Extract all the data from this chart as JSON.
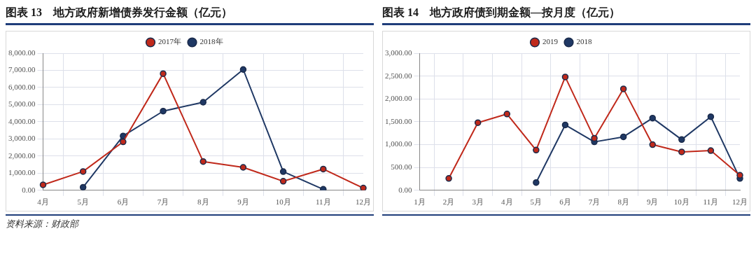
{
  "chart_data": [
    {
      "type": "line",
      "title": "图表 13　地方政府新增债券发行金额（亿元）",
      "categories": [
        "4月",
        "5月",
        "6月",
        "7月",
        "8月",
        "9月",
        "10月",
        "11月",
        "12月"
      ],
      "series": [
        {
          "name": "2018年",
          "color": "#1f3864",
          "values": [
            null,
            180,
            3170,
            4620,
            5140,
            7050,
            1090,
            60,
            null
          ]
        },
        {
          "name": "2017年",
          "color": "#c0291b",
          "values": [
            320,
            1100,
            2830,
            6810,
            1680,
            1340,
            530,
            1240,
            130
          ]
        }
      ],
      "ylim": [
        0,
        8000
      ],
      "yticks": [
        {
          "value": 0,
          "label": "0.00"
        },
        {
          "value": 1000,
          "label": "1,000.00"
        },
        {
          "value": 2000,
          "label": "2,000.00"
        },
        {
          "value": 3000,
          "label": "3,000.00"
        },
        {
          "value": 4000,
          "label": "4,000.00"
        },
        {
          "value": 5000,
          "label": "5,000.00"
        },
        {
          "value": 6000,
          "label": "6,000.00"
        },
        {
          "value": 7000,
          "label": "7,000.00"
        },
        {
          "value": 8000,
          "label": "8,000.00"
        }
      ],
      "grid": true,
      "legend": "top",
      "marker": "circle",
      "line_style": "solid",
      "annotations": [
        "资料来源：财政部"
      ]
    },
    {
      "type": "line",
      "title": "图表 14　地方政府债到期金额—按月度（亿元）",
      "categories": [
        "1月",
        "2月",
        "3月",
        "4月",
        "5月",
        "6月",
        "7月",
        "8月",
        "9月",
        "10月",
        "11月",
        "12月"
      ],
      "series": [
        {
          "name": "2018",
          "color": "#1f3864",
          "values": [
            null,
            null,
            null,
            null,
            170,
            1430,
            1060,
            1170,
            1580,
            1110,
            1610,
            260
          ]
        },
        {
          "name": "2019",
          "color": "#c0291b",
          "values": [
            null,
            260,
            1480,
            1670,
            880,
            2480,
            1140,
            2220,
            1000,
            840,
            870,
            330
          ]
        }
      ],
      "ylim": [
        0,
        3000
      ],
      "yticks": [
        {
          "value": 0,
          "label": "0.00"
        },
        {
          "value": 500,
          "label": "500.00"
        },
        {
          "value": 1000,
          "label": "1,000.00"
        },
        {
          "value": 1500,
          "label": "1,500.00"
        },
        {
          "value": 2000,
          "label": "2,000.00"
        },
        {
          "value": 2500,
          "label": "2,500.00"
        },
        {
          "value": 3000,
          "label": "3,000.00"
        }
      ],
      "grid": true,
      "legend": "top",
      "marker": "circle",
      "line_style": "solid"
    }
  ]
}
